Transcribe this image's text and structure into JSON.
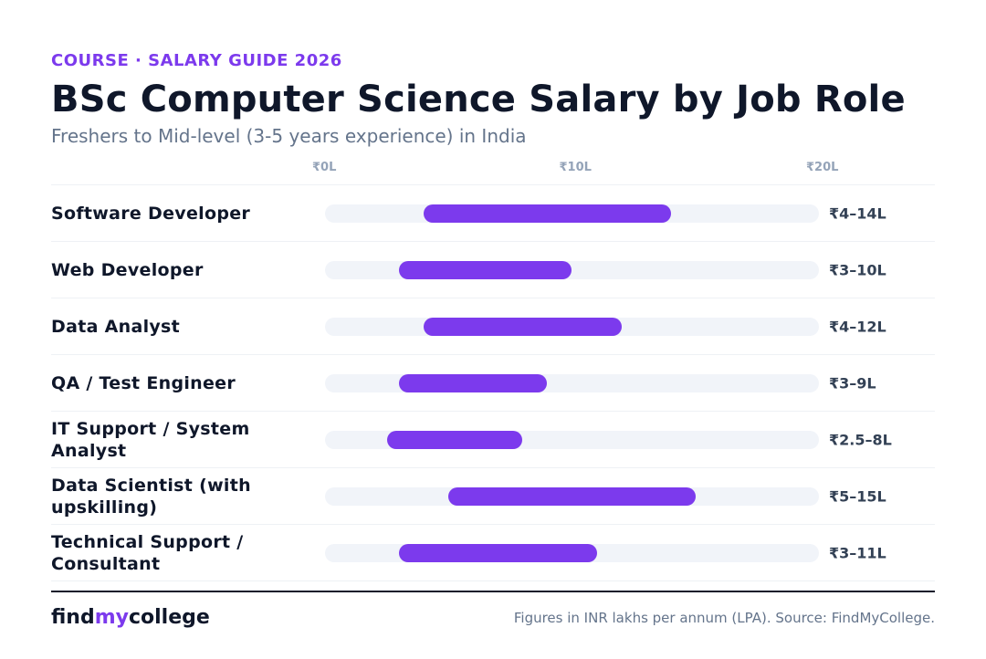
{
  "header": {
    "eyebrow": "COURSE · SALARY GUIDE 2026",
    "title": "BSc Computer Science Salary by Job Role",
    "subtitle": "Freshers to Mid-level (3-5 years experience) in India"
  },
  "chart_data": {
    "type": "bar",
    "orientation": "horizontal-range",
    "xlim": [
      0,
      20
    ],
    "ticks": [
      {
        "value": 0,
        "label": "₹0L"
      },
      {
        "value": 10,
        "label": "₹10L"
      },
      {
        "value": 20,
        "label": "₹20L"
      }
    ],
    "bar_color": "#7c3aed",
    "track_color": "#f1f4f9",
    "categories": [
      "Software Developer",
      "Web Developer",
      "Data Analyst",
      "QA / Test Engineer",
      "IT Support / System Analyst",
      "Data Scientist (with upskilling)",
      "Technical Support / Consultant"
    ],
    "ranges": [
      {
        "min": 4,
        "max": 14,
        "label": "₹4–14L"
      },
      {
        "min": 3,
        "max": 10,
        "label": "₹3–10L"
      },
      {
        "min": 4,
        "max": 12,
        "label": "₹4–12L"
      },
      {
        "min": 3,
        "max": 9,
        "label": "₹3–9L"
      },
      {
        "min": 2.5,
        "max": 8,
        "label": "₹2.5–8L"
      },
      {
        "min": 5,
        "max": 15,
        "label": "₹5–15L"
      },
      {
        "min": 3,
        "max": 11,
        "label": "₹3–11L"
      }
    ]
  },
  "footer": {
    "brand_pre": "find",
    "brand_accent": "my",
    "brand_post": "college",
    "source": "Figures in INR lakhs per annum (LPA). Source: FindMyCollege."
  }
}
